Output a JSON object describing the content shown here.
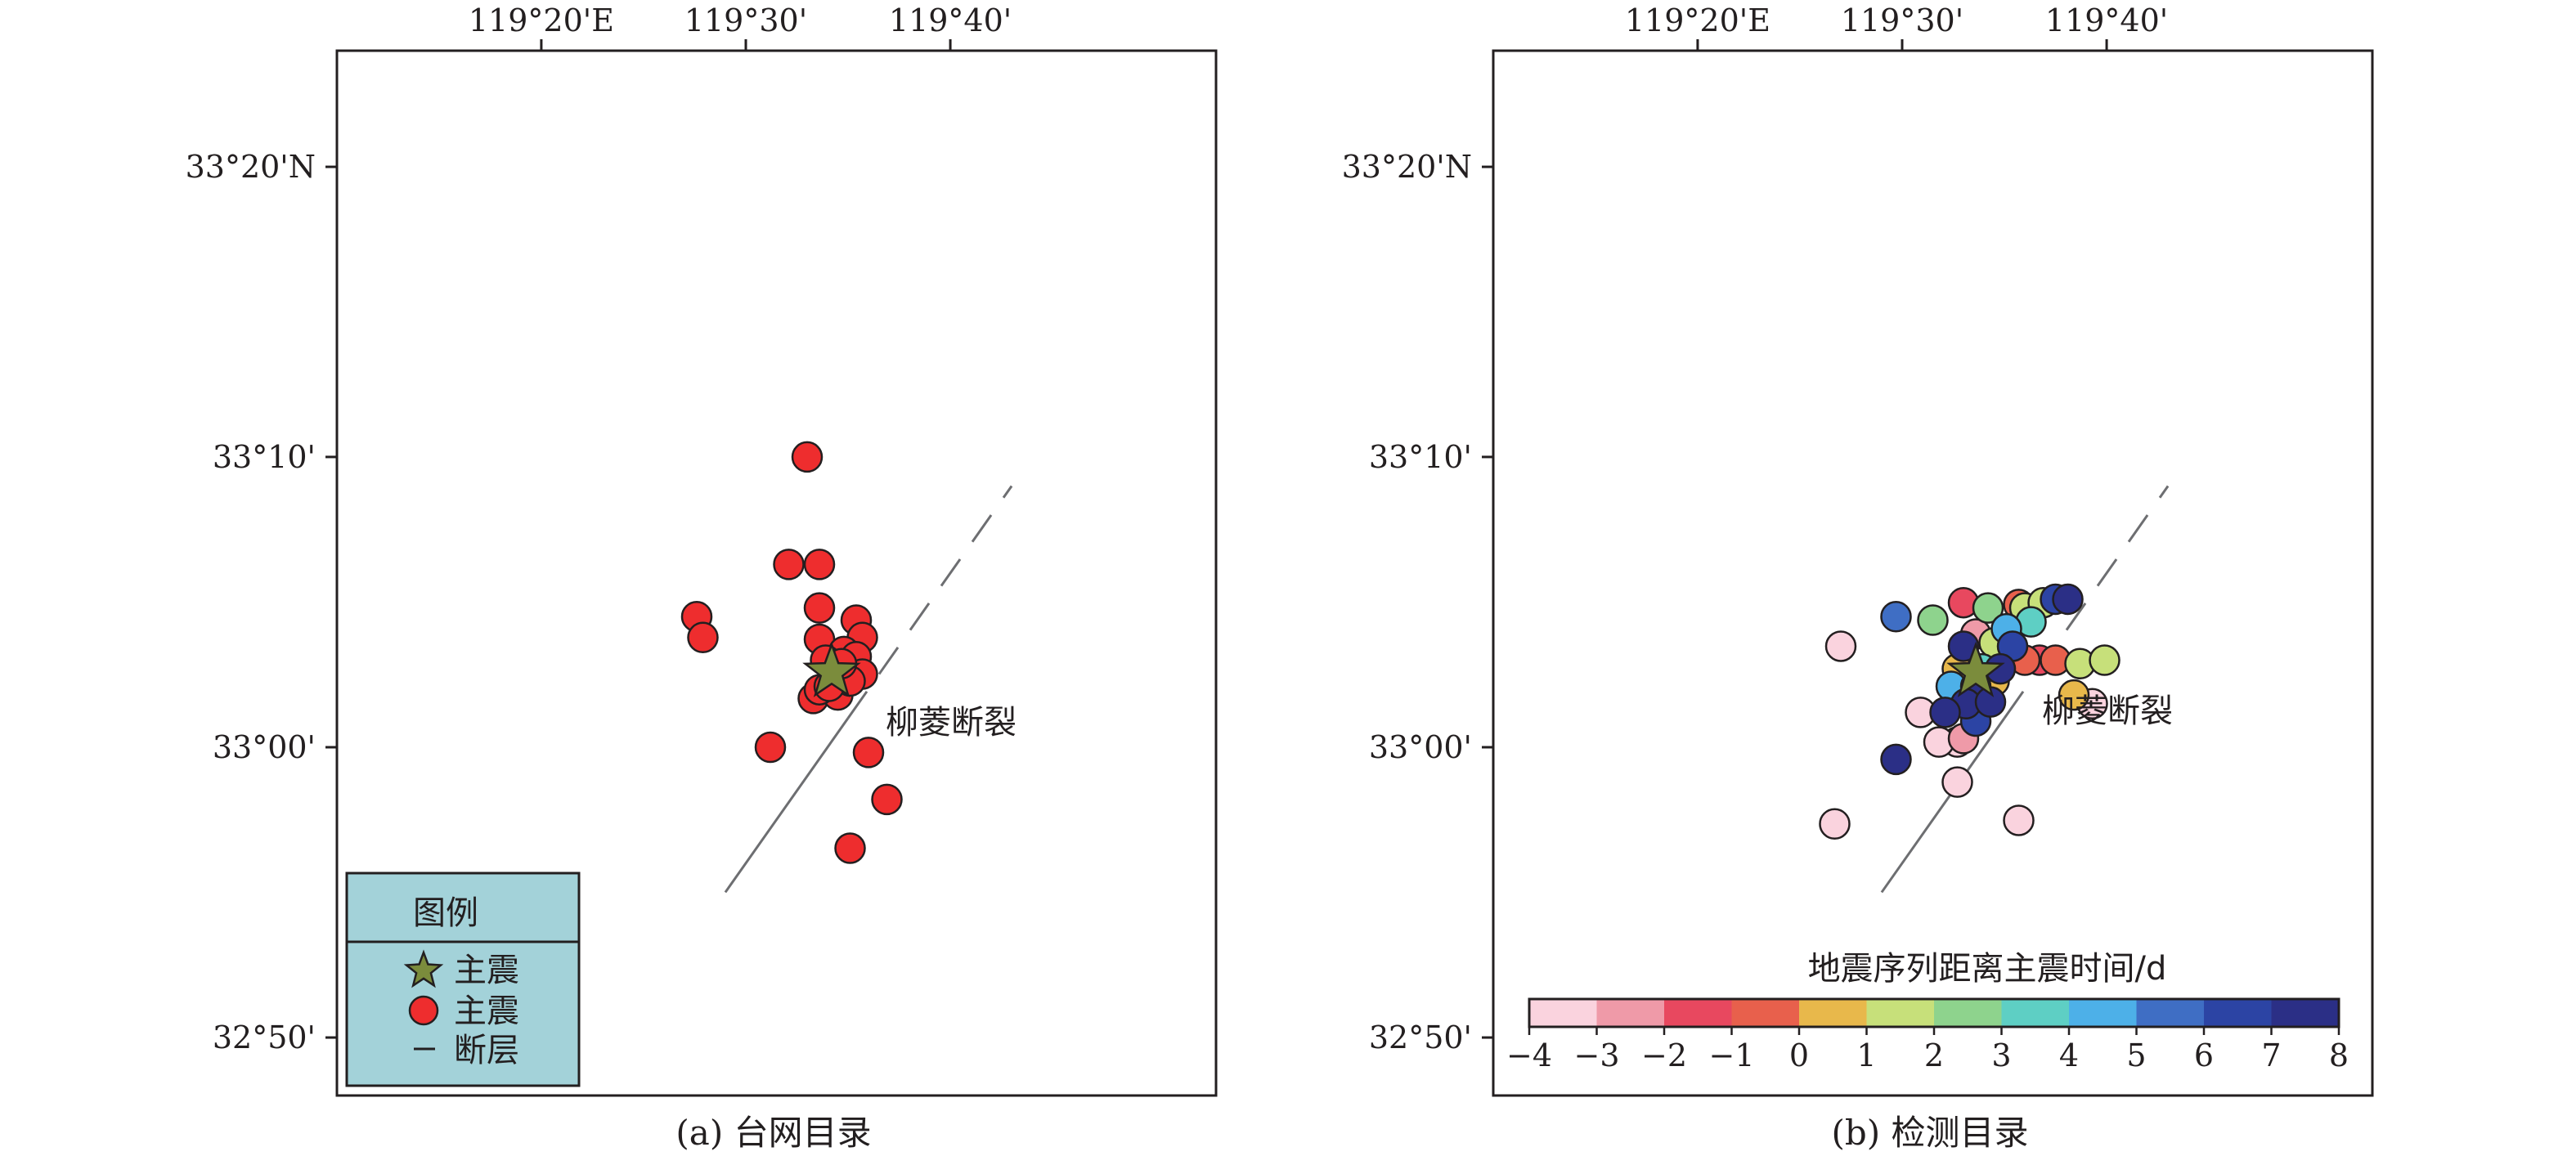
{
  "extent": {
    "lon": [
      119.1667,
      119.8833
    ],
    "lat": [
      32.8,
      33.4
    ]
  },
  "lon_ticks": [
    {
      "value": 119.3333,
      "label": "119°20'E"
    },
    {
      "value": 119.5,
      "label": "119°30'"
    },
    {
      "value": 119.6667,
      "label": "119°40'"
    }
  ],
  "lat_ticks": [
    {
      "value": 33.3333,
      "label": "33°20'N"
    },
    {
      "value": 33.1667,
      "label": "33°10'"
    },
    {
      "value": 33.0,
      "label": "33°00'"
    },
    {
      "value": 32.8333,
      "label": "32°50'"
    }
  ],
  "fault": {
    "label": "柳菱断裂",
    "line": [
      [
        119.4833,
        32.9167
      ],
      [
        119.7167,
        33.15
      ]
    ],
    "dashed_from": 119.5833
  },
  "panel_a": {
    "caption": "(a) 台网目录",
    "mainshock": {
      "lon": 119.57,
      "lat": 33.043
    },
    "events": [
      [
        119.55,
        33.1667
      ],
      [
        119.535,
        33.105
      ],
      [
        119.56,
        33.105
      ],
      [
        119.46,
        33.075
      ],
      [
        119.465,
        33.063
      ],
      [
        119.56,
        33.08
      ],
      [
        119.56,
        33.062
      ],
      [
        119.59,
        33.073
      ],
      [
        119.595,
        33.063
      ],
      [
        119.58,
        33.055
      ],
      [
        119.565,
        33.05
      ],
      [
        119.59,
        33.052
      ],
      [
        119.595,
        33.042
      ],
      [
        119.555,
        33.028
      ],
      [
        119.575,
        33.03
      ],
      [
        119.585,
        33.038
      ],
      [
        119.56,
        33.033
      ],
      [
        119.52,
        33.0
      ],
      [
        119.6,
        32.997
      ],
      [
        119.615,
        32.97
      ],
      [
        119.585,
        32.942
      ],
      [
        119.568,
        33.035
      ],
      [
        119.578,
        33.048
      ]
    ],
    "legend": {
      "title": "图例",
      "items": [
        {
          "symbol": "star-icon",
          "label": "主震"
        },
        {
          "symbol": "circle-icon",
          "label": "主震"
        },
        {
          "symbol": "line-icon",
          "label": "断层"
        }
      ]
    },
    "colors": {
      "event": "#ee2d2e",
      "mainshock": "#7b8c3c",
      "legend_bg": "#a3d2d9"
    }
  },
  "panel_b": {
    "caption": "(b) 检测目录",
    "mainshock": {
      "lon": 119.56,
      "lat": 33.043
    },
    "events": [
      [
        119.495,
        33.075,
        5
      ],
      [
        119.525,
        33.073,
        2
      ],
      [
        119.55,
        33.083,
        -2
      ],
      [
        119.57,
        33.08,
        2
      ],
      [
        119.595,
        33.082,
        -1
      ],
      [
        119.6,
        33.08,
        1
      ],
      [
        119.615,
        33.083,
        1
      ],
      [
        119.625,
        33.085,
        6
      ],
      [
        119.635,
        33.085,
        7
      ],
      [
        119.605,
        33.072,
        3
      ],
      [
        119.585,
        33.068,
        4
      ],
      [
        119.56,
        33.065,
        -3
      ],
      [
        119.575,
        33.06,
        1
      ],
      [
        119.55,
        33.058,
        7
      ],
      [
        119.59,
        33.058,
        6
      ],
      [
        119.6,
        33.05,
        -1
      ],
      [
        119.612,
        33.05,
        -2
      ],
      [
        119.645,
        33.048,
        1
      ],
      [
        119.545,
        33.045,
        0
      ],
      [
        119.565,
        33.045,
        3
      ],
      [
        119.58,
        33.045,
        7
      ],
      [
        119.54,
        33.035,
        4
      ],
      [
        119.56,
        33.035,
        7
      ],
      [
        119.575,
        33.038,
        0
      ],
      [
        119.552,
        33.025,
        7
      ],
      [
        119.572,
        33.026,
        7
      ],
      [
        119.535,
        33.02,
        7
      ],
      [
        119.56,
        33.015,
        6
      ],
      [
        119.55,
        33.005,
        -3
      ],
      [
        119.545,
        33.003,
        -4
      ],
      [
        119.515,
        33.02,
        -4
      ],
      [
        119.53,
        33.003,
        -4
      ],
      [
        119.545,
        32.98,
        -4
      ],
      [
        119.45,
        33.058,
        -4
      ],
      [
        119.495,
        32.993,
        7
      ],
      [
        119.595,
        32.958,
        -4
      ],
      [
        119.445,
        32.956,
        -4
      ],
      [
        119.625,
        33.05,
        -1
      ],
      [
        119.64,
        33.03,
        0
      ],
      [
        119.665,
        33.05,
        1
      ],
      [
        119.655,
        33.025,
        -4
      ]
    ],
    "colorbar": {
      "title": "地震序列距离主震时间/d",
      "ticks": [
        "−4",
        "−3",
        "−2",
        "−1",
        "0",
        "1",
        "2",
        "3",
        "4",
        "5",
        "6",
        "7",
        "8"
      ],
      "colors": [
        "#fad3de",
        "#ef9aa8",
        "#e8485f",
        "#e8604c",
        "#e8b84b",
        "#c7e07a",
        "#8ed38d",
        "#5ecfc4",
        "#4db0e8",
        "#3f6ec4",
        "#2c44a4",
        "#2b2f86"
      ]
    },
    "colors": {
      "mainshock": "#7b8c3c"
    }
  }
}
